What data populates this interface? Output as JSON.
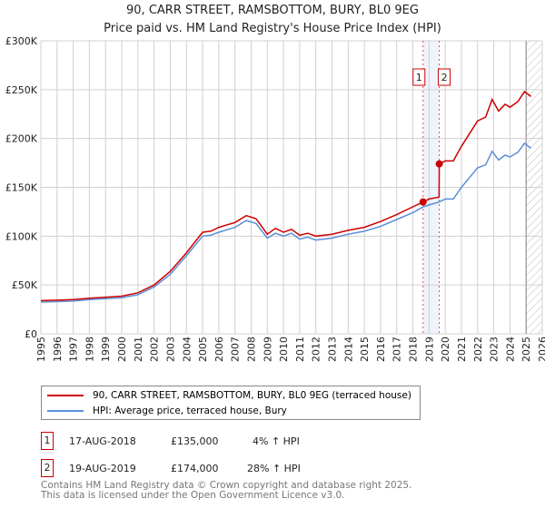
{
  "chart_data": {
    "type": "line",
    "title": "90, CARR STREET, RAMSBOTTOM, BURY, BL0 9EG",
    "subtitle": "Price paid vs. HM Land Registry's House Price Index (HPI)",
    "xlim": [
      1995,
      2026
    ],
    "ylim": [
      0,
      300000
    ],
    "yticks": [
      {
        "v": 0,
        "label": "£0"
      },
      {
        "v": 50000,
        "label": "£50K"
      },
      {
        "v": 100000,
        "label": "£100K"
      },
      {
        "v": 150000,
        "label": "£150K"
      },
      {
        "v": 200000,
        "label": "£200K"
      },
      {
        "v": 250000,
        "label": "£250K"
      },
      {
        "v": 300000,
        "label": "£300K"
      }
    ],
    "xticks": [
      "1995",
      "1996",
      "1997",
      "1998",
      "1999",
      "2000",
      "2001",
      "2002",
      "2003",
      "2004",
      "2005",
      "2006",
      "2007",
      "2008",
      "2009",
      "2010",
      "2011",
      "2012",
      "2013",
      "2014",
      "2015",
      "2016",
      "2017",
      "2018",
      "2019",
      "2020",
      "2021",
      "2022",
      "2023",
      "2024",
      "2025",
      "2026"
    ],
    "grid": true,
    "series": [
      {
        "name": "90, CARR STREET, RAMSBOTTOM, BURY, BL0 9EG (terraced house)",
        "color": "#cc0000",
        "x": [
          1995,
          1996,
          1997,
          1998,
          1999,
          2000,
          2001,
          2002,
          2003,
          2004,
          2005,
          2005.5,
          2006,
          2007,
          2007.7,
          2008.3,
          2009,
          2009.5,
          2010,
          2010.5,
          2011,
          2011.5,
          2012,
          2013,
          2014,
          2015,
          2016,
          2017,
          2018,
          2018.63,
          2019.0,
          2019.62,
          2019.63,
          2020,
          2020.5,
          2021,
          2021.5,
          2022,
          2022.5,
          2022.9,
          2023.3,
          2023.7,
          2024,
          2024.5,
          2024.9,
          2025.3
        ],
        "y": [
          34000,
          34500,
          35000,
          36500,
          37500,
          38500,
          42000,
          50000,
          64000,
          83000,
          104000,
          105000,
          109000,
          114000,
          121000,
          118000,
          102000,
          108000,
          104000,
          107000,
          101000,
          103000,
          100000,
          102000,
          106000,
          109000,
          115000,
          122000,
          130000,
          135000,
          138000,
          140000,
          174000,
          177000,
          177000,
          192000,
          205000,
          218000,
          222000,
          240000,
          228000,
          235000,
          232000,
          238000,
          248000,
          243000
        ]
      },
      {
        "name": "HPI: Average price, terraced house, Bury",
        "color": "#5b8fd6",
        "x": [
          1995,
          1996,
          1997,
          1998,
          1999,
          2000,
          2001,
          2002,
          2003,
          2004,
          2005,
          2005.5,
          2006,
          2007,
          2007.7,
          2008.3,
          2009,
          2009.5,
          2010,
          2010.5,
          2011,
          2011.5,
          2012,
          2013,
          2014,
          2015,
          2016,
          2017,
          2018,
          2018.63,
          2019.0,
          2019.62,
          2020,
          2020.5,
          2021,
          2021.5,
          2022,
          2022.5,
          2022.9,
          2023.3,
          2023.7,
          2024,
          2024.5,
          2024.9,
          2025.3
        ],
        "y": [
          32500,
          33000,
          33500,
          35000,
          36000,
          37000,
          40000,
          48000,
          61000,
          80000,
          100000,
          101000,
          104000,
          109000,
          116000,
          113000,
          98000,
          103000,
          100000,
          103000,
          97000,
          99000,
          96000,
          98000,
          102000,
          105000,
          110000,
          117000,
          124000,
          130000,
          132000,
          135000,
          138000,
          138000,
          150000,
          160000,
          170000,
          173000,
          187000,
          178000,
          183000,
          181000,
          186000,
          195000,
          190000
        ]
      }
    ],
    "sales": [
      {
        "label": "1",
        "x": 2018.63,
        "price": 135000,
        "date": "17-AUG-2018",
        "price_text": "£135,000",
        "hpi_text": "4% ↑ HPI"
      },
      {
        "label": "2",
        "x": 2019.63,
        "price": 174000,
        "date": "19-AUG-2019",
        "price_text": "£174,000",
        "hpi_text": "28% ↑ HPI"
      }
    ],
    "forecast_start": 2025.0
  },
  "footer": [
    "Contains HM Land Registry data © Crown copyright and database right 2025.",
    "This data is licensed under the Open Government Licence v3.0."
  ]
}
